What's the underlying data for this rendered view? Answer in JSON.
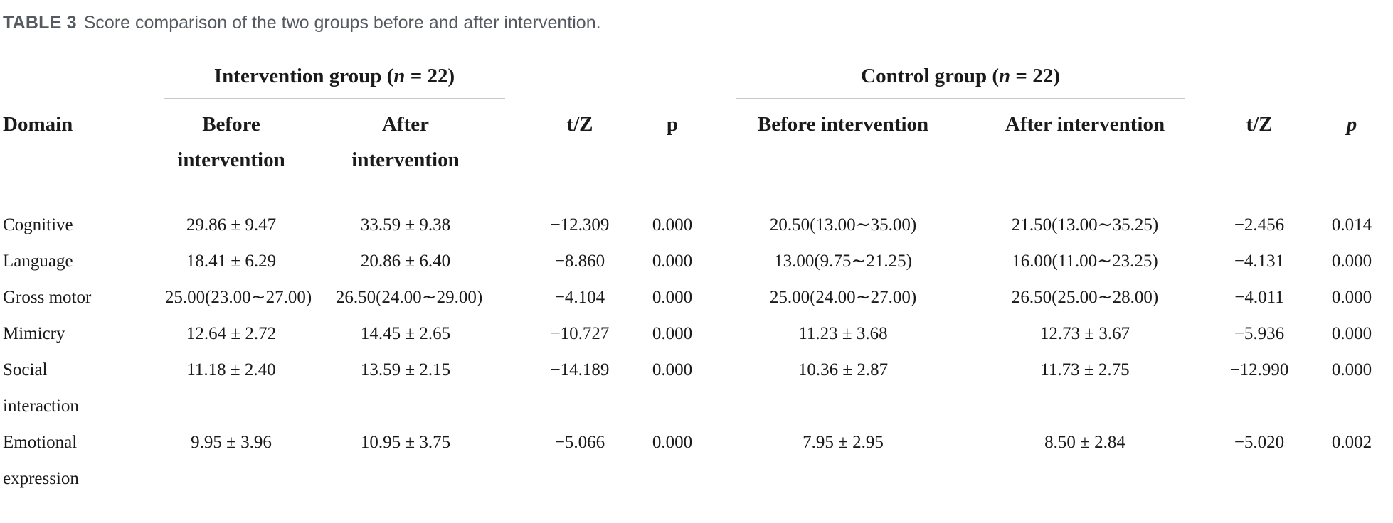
{
  "caption": {
    "label": "TABLE 3",
    "text": "Score comparison of the two groups before and after intervention."
  },
  "header": {
    "intervention_group_prefix": "Intervention group (",
    "intervention_group_n": "n",
    "intervention_group_suffix": " = 22)",
    "control_group_prefix": "Control group (",
    "control_group_n": "n",
    "control_group_suffix": " = 22)",
    "domain": "Domain",
    "ig_before_line1": "Before",
    "ig_before_line2": "intervention",
    "ig_after_line1": "After",
    "ig_after_line2": "intervention",
    "tz1": "t/Z",
    "p1": "p",
    "cg_before": "Before intervention",
    "cg_after": "After intervention",
    "tz2": "t/Z",
    "p2": "p"
  },
  "rows": [
    {
      "domain_line1": "Cognitive",
      "domain_line2": "",
      "ig_before": "29.86 ± 9.47",
      "ig_after": "33.59 ± 9.38",
      "tz1": "−12.309",
      "p1": "0.000",
      "cg_before": "20.50(13.00∼35.00)",
      "cg_after": "21.50(13.00∼35.25)",
      "tz2": "−2.456",
      "p2": "0.014"
    },
    {
      "domain_line1": "Language",
      "domain_line2": "",
      "ig_before": "18.41 ± 6.29",
      "ig_after": "20.86 ± 6.40",
      "tz1": "−8.860",
      "p1": "0.000",
      "cg_before": "13.00(9.75∼21.25)",
      "cg_after": "16.00(11.00∼23.25)",
      "tz2": "−4.131",
      "p2": "0.000"
    },
    {
      "domain_line1": "Gross motor",
      "domain_line2": "",
      "ig_before": "25.00(23.00∼27.00)",
      "ig_after": "26.50(24.00∼29.00)",
      "tz1": "−4.104",
      "p1": "0.000",
      "cg_before": "25.00(24.00∼27.00)",
      "cg_after": "26.50(25.00∼28.00)",
      "tz2": "−4.011",
      "p2": "0.000"
    },
    {
      "domain_line1": "Mimicry",
      "domain_line2": "",
      "ig_before": "12.64 ± 2.72",
      "ig_after": "14.45 ± 2.65",
      "tz1": "−10.727",
      "p1": "0.000",
      "cg_before": "11.23 ± 3.68",
      "cg_after": "12.73 ± 3.67",
      "tz2": "−5.936",
      "p2": "0.000"
    },
    {
      "domain_line1": "Social",
      "domain_line2": "interaction",
      "ig_before": "11.18 ± 2.40",
      "ig_after": "13.59 ± 2.15",
      "tz1": "−14.189",
      "p1": "0.000",
      "cg_before": "10.36 ± 2.87",
      "cg_after": "11.73 ± 2.75",
      "tz2": "−12.990",
      "p2": "0.000"
    },
    {
      "domain_line1": "Emotional",
      "domain_line2": "expression",
      "ig_before": "9.95 ± 3.96",
      "ig_after": "10.95 ± 3.75",
      "tz1": "−5.066",
      "p1": "0.000",
      "cg_before": "7.95 ± 2.95",
      "cg_after": "8.50 ± 2.84",
      "tz2": "−5.020",
      "p2": "0.002"
    }
  ]
}
